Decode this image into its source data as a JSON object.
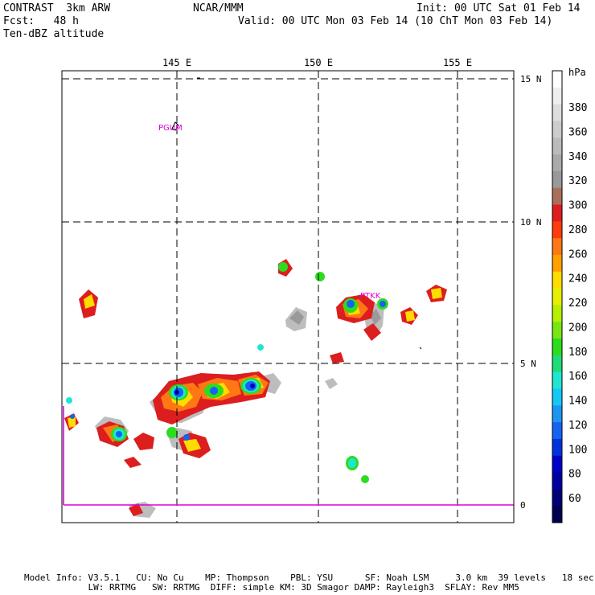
{
  "header": {
    "model": "CONTRAST  3km ARW",
    "forecast": "Fcst:   48 h",
    "field": "Ten-dBZ altitude",
    "org": "NCAR/MMM",
    "init": "Init: 00 UTC Sat 01 Feb 14",
    "valid": "Valid: 00 UTC Mon 03 Feb 14 (10 ChT Mon 03 Feb 14)"
  },
  "map": {
    "lon_labels": [
      "145 E",
      "150 E",
      "155 E"
    ],
    "lat_labels": [
      "15 N",
      "10 N",
      "5 N",
      "0"
    ],
    "stations": [
      "PGUM",
      "PTKK"
    ],
    "grid": "dashed"
  },
  "colorbar": {
    "unit": "hPa",
    "labels": [
      "380",
      "360",
      "340",
      "320",
      "300",
      "280",
      "260",
      "240",
      "220",
      "200",
      "180",
      "160",
      "140",
      "120",
      "100",
      "80",
      "60"
    ],
    "colors": [
      "#ffffff",
      "#eeeeee",
      "#dddddd",
      "#cccccc",
      "#bbbbbb",
      "#aaaaaa",
      "#999999",
      "#aa6e5a",
      "#dc1e1e",
      "#ff3c0a",
      "#ff7814",
      "#ffa000",
      "#ffdc00",
      "#e6f000",
      "#b4f000",
      "#78e614",
      "#2ddc1e",
      "#1edc78",
      "#1ee6d2",
      "#14c8f5",
      "#1e96f0",
      "#1464f0",
      "#0032dc",
      "#0000c8",
      "#0000a0",
      "#000078",
      "#000050"
    ]
  },
  "footer": {
    "line1": "Model Info: V3.5.1   CU: No Cu    MP: Thompson    PBL: YSU      SF: Noah LSM     3.0 km  39 levels   18 sec",
    "line2": "            LW: RRTMG   SW: RRTMG  DIFF: simple KM: 3D Smagor DAMP: Rayleigh3  SFLAY: Rev MM5"
  }
}
